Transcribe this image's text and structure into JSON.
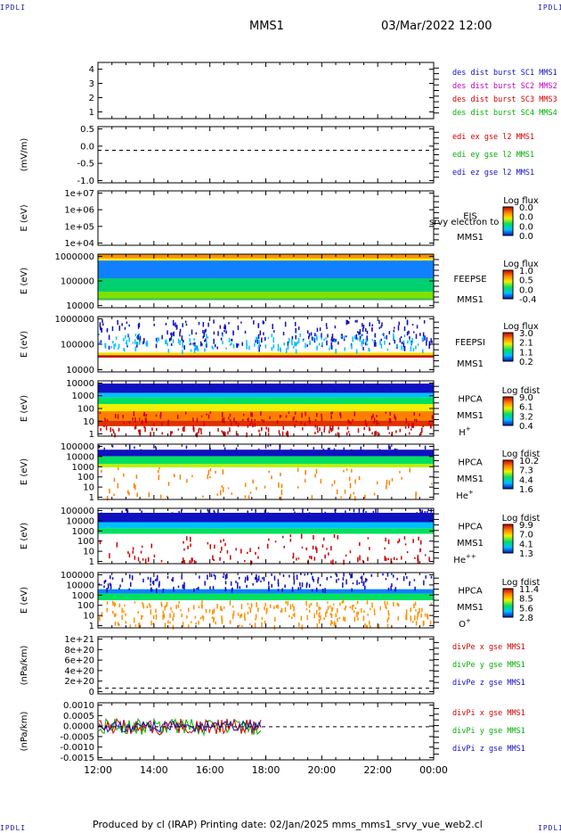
{
  "corner_marks": {
    "top_left": "IPDLI",
    "top_right": "IPDLI",
    "bottom_left": "IPDLI",
    "bottom_right": "IPDLI"
  },
  "header": {
    "spacecraft": "MMS1",
    "datetime": "03/Mar/2022 12:00"
  },
  "footer": {
    "text": "Produced by cl (IRAP)   Printing date: 02/Jan/2025   mms_mms1_srvy_vue_web2.cl"
  },
  "colors": {
    "blue": "#1010c0",
    "magenta": "#c000c0",
    "red": "#d00000",
    "green": "#00b000"
  },
  "chart_data": {
    "type": "heatmap",
    "x_axis": {
      "start": "12:00",
      "end": "00:00",
      "tick_labels": [
        "12:00",
        "14:00",
        "16:00",
        "18:00",
        "20:00",
        "22:00",
        "00:00"
      ]
    },
    "panels": [
      {
        "id": "p1",
        "ylabel": "",
        "yticks": [
          "4",
          "3",
          "2",
          "1"
        ],
        "legend": [
          {
            "text": "des dist burst SC1 MMS1",
            "color": "#1010c0"
          },
          {
            "text": "des dist burst SC2 MMS2",
            "color": "#c000c0"
          },
          {
            "text": "des dist burst SC3 MMS3",
            "color": "#d00000"
          },
          {
            "text": "des dist burst SC4 MMS4",
            "color": "#00b000"
          }
        ]
      },
      {
        "id": "p2",
        "ylabel": "(mV/m)",
        "yticks": [
          "0.5",
          "0.0",
          "-0.5",
          "-1.0"
        ],
        "zero_line": 0.0,
        "legend": [
          {
            "text": "edi ex gse l2 MMS1",
            "color": "#d00000"
          },
          {
            "text": "edi ey gse l2 MMS1",
            "color": "#00b000"
          },
          {
            "text": "edi ez gse l2 MMS1",
            "color": "#1010c0"
          }
        ]
      },
      {
        "id": "p3",
        "ylabel": "E (eV)",
        "yticks": [
          "1e+07",
          "1e+06",
          "1e+05",
          "1e+04"
        ],
        "instrument": [
          "EIS",
          "MMS1"
        ],
        "overlay_text": "srvy electron to",
        "colorbar": {
          "title": "Log flux",
          "labels": [
            "0.0",
            "0.0",
            "0.0",
            "0.0"
          ]
        }
      },
      {
        "id": "p4",
        "ylabel": "E (eV)",
        "yticks": [
          "1000000",
          "100000",
          "10000"
        ],
        "instrument": [
          "FEEPSE",
          "MMS1"
        ],
        "colorbar": {
          "title": "Log flux",
          "labels": [
            "1.0",
            "0.5",
            "0.0",
            "-0.4"
          ]
        }
      },
      {
        "id": "p5",
        "ylabel": "E (eV)",
        "yticks": [
          "1000000",
          "100000",
          "10000"
        ],
        "instrument": [
          "FEEPSI",
          "MMS1"
        ],
        "colorbar": {
          "title": "Log flux",
          "labels": [
            "3.0",
            "2.1",
            "1.1",
            "0.2"
          ]
        }
      },
      {
        "id": "p6",
        "ylabel": "E (eV)",
        "yticks": [
          "10000",
          "1000",
          "100",
          "10",
          "1"
        ],
        "instrument": [
          "HPCA",
          "MMS1"
        ],
        "species": "H",
        "species_sup": "+",
        "colorbar": {
          "title": "Log fdist",
          "labels": [
            "9.0",
            "6.1",
            "3.2",
            "0.4"
          ]
        }
      },
      {
        "id": "p7",
        "ylabel": "E (eV)",
        "yticks": [
          "100000",
          "10000",
          "1000",
          "100",
          "10",
          "1"
        ],
        "instrument": [
          "HPCA",
          "MMS1"
        ],
        "species": "He",
        "species_sup": "+",
        "colorbar": {
          "title": "Log fdist",
          "labels": [
            "10.2",
            "7.3",
            "4.4",
            "1.6"
          ]
        }
      },
      {
        "id": "p8",
        "ylabel": "E (eV)",
        "yticks": [
          "100000",
          "10000",
          "1000",
          "100",
          "10",
          "1"
        ],
        "instrument": [
          "HPCA",
          "MMS1"
        ],
        "species": "He",
        "species_sup": "++",
        "colorbar": {
          "title": "Log fdist",
          "labels": [
            "9.9",
            "7.0",
            "4.1",
            "1.3"
          ]
        }
      },
      {
        "id": "p9",
        "ylabel": "E (eV)",
        "yticks": [
          "100000",
          "10000",
          "1000",
          "100",
          "10",
          "1"
        ],
        "instrument": [
          "HPCA",
          "MMS1"
        ],
        "species": "O",
        "species_sup": "+",
        "colorbar": {
          "title": "Log fdist",
          "labels": [
            "11.4",
            "8.5",
            "5.6",
            "2.8"
          ]
        }
      },
      {
        "id": "p10",
        "ylabel": "(nPa/km)",
        "yticks": [
          "1e+21",
          "8e+20",
          "6e+20",
          "4e+20",
          "2e+20",
          "0"
        ],
        "zero_line": 0,
        "legend": [
          {
            "text": "divPe x gse MMS1",
            "color": "#d00000"
          },
          {
            "text": "divPe y gse MMS1",
            "color": "#00b000"
          },
          {
            "text": "divPe z gse MMS1",
            "color": "#1010c0"
          }
        ]
      },
      {
        "id": "p11",
        "ylabel": "(nPa/km)",
        "yticks": [
          "0.0010",
          "0.0005",
          "0.0000",
          "-0.0005",
          "-0.0010",
          "-0.0015"
        ],
        "zero_line": 0.0,
        "data_end": "17:50",
        "legend": [
          {
            "text": "divPi x gse MMS1",
            "color": "#d00000"
          },
          {
            "text": "divPi y gse MMS1",
            "color": "#00b000"
          },
          {
            "text": "divPi z gse MMS1",
            "color": "#1010c0"
          }
        ]
      }
    ]
  }
}
